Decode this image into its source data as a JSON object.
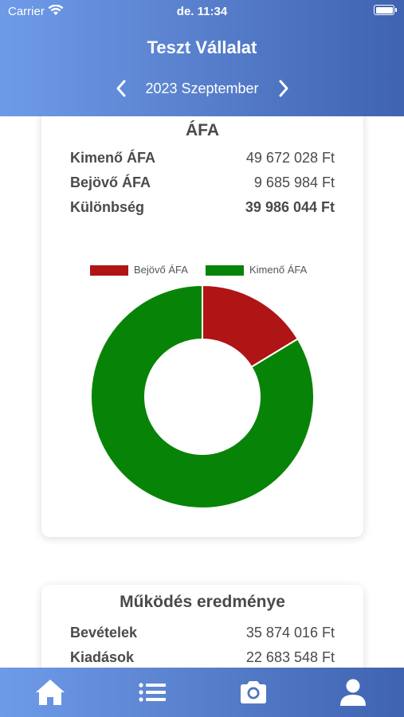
{
  "status_bar": {
    "carrier": "Carrier",
    "time": "de. 11:34"
  },
  "header": {
    "company": "Teszt Vállalat",
    "period": "2023 Szeptember"
  },
  "afa_card": {
    "title": "ÁFA",
    "rows": [
      {
        "label": "Kimenő ÁFA",
        "value": "49 672 028 Ft"
      },
      {
        "label": "Bejövő ÁFA",
        "value": "9 685 984 Ft"
      },
      {
        "label": "Különbség",
        "value": "39 986 044 Ft"
      }
    ]
  },
  "chart_data": {
    "type": "pie",
    "variant": "doughnut",
    "legend_position": "top",
    "slices": [
      {
        "name": "Bejövő ÁFA",
        "value": 9685984,
        "color": "#b01515"
      },
      {
        "name": "Kimenő ÁFA",
        "value": 49672028,
        "color": "#078407"
      }
    ]
  },
  "result_card": {
    "title": "Működés eredménye",
    "rows": [
      {
        "label": "Bevételek",
        "value": "35 874 016 Ft"
      },
      {
        "label": "Kiadások",
        "value": "22 683 548 Ft"
      }
    ]
  },
  "tabs": [
    {
      "icon": "home-icon"
    },
    {
      "icon": "list-icon"
    },
    {
      "icon": "camera-icon"
    },
    {
      "icon": "user-icon"
    }
  ],
  "colors": {
    "header_start": "#6e9be8",
    "header_end": "#3f63b0",
    "text": "#4a4a4a"
  }
}
